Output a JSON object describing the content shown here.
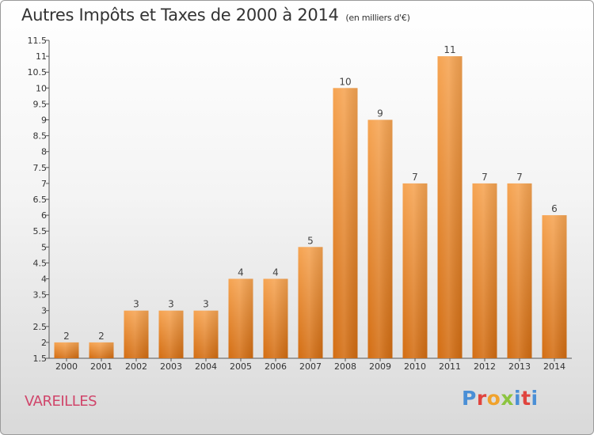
{
  "chart_data": {
    "type": "bar",
    "title": "Autres Impôts et Taxes de 2000 à 2014",
    "subtitle": "(en milliers d'€)",
    "xlabel": "",
    "ylabel": "",
    "categories": [
      "2000",
      "2001",
      "2002",
      "2003",
      "2004",
      "2005",
      "2006",
      "2007",
      "2008",
      "2009",
      "2010",
      "2011",
      "2012",
      "2013",
      "2014"
    ],
    "values": [
      2,
      2,
      3,
      3,
      3,
      4,
      4,
      5,
      10,
      9,
      7,
      11,
      7,
      7,
      6
    ],
    "data_labels": [
      "2",
      "2",
      "3",
      "3",
      "3",
      "4",
      "4",
      "5",
      "10",
      "9",
      "7",
      "11",
      "7",
      "7",
      "6"
    ],
    "ylim": [
      1.5,
      11.5
    ],
    "yticks": [
      1.5,
      2,
      2.5,
      3,
      3.5,
      4,
      4.5,
      5,
      5.5,
      6,
      6.5,
      7,
      7.5,
      8,
      8.5,
      9,
      9.5,
      10,
      10.5,
      11,
      11.5
    ],
    "ytick_labels": [
      "1.5",
      "2",
      "2.5",
      "3",
      "3.5",
      "4",
      "4.5",
      "5",
      "5.5",
      "6",
      "6.5",
      "7",
      "7.5",
      "8",
      "8.5",
      "9",
      "9.5",
      "10",
      "10.5",
      "11",
      "11.5"
    ],
    "grid": false,
    "bar_color": "#f28a2e"
  },
  "commune": "VAREILLES",
  "logo_text": "Proxiti"
}
